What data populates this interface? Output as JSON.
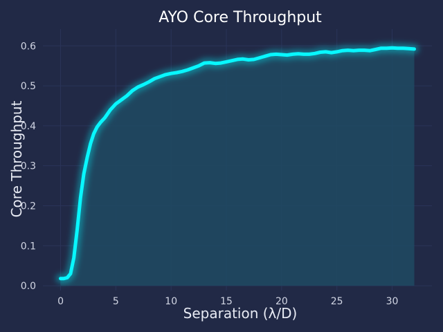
{
  "chart_data": {
    "type": "area",
    "title": "AYO Core Throughput",
    "xlabel": "Separation (λ/D)",
    "ylabel": "Core Throughput",
    "xlim": [
      -1.6,
      33.6
    ],
    "ylim": [
      -0.012,
      0.642
    ],
    "xticks": [
      0,
      5,
      10,
      15,
      20,
      25,
      30
    ],
    "xtick_labels": [
      "0",
      "5",
      "10",
      "15",
      "20",
      "25",
      "30"
    ],
    "yticks": [
      0.0,
      0.1,
      0.2,
      0.3,
      0.4,
      0.5,
      0.6
    ],
    "ytick_labels": [
      "0.0",
      "0.1",
      "0.2",
      "0.3",
      "0.4",
      "0.5",
      "0.6"
    ],
    "grid": true,
    "colors": {
      "background": "#212946",
      "grid": "#2a3459",
      "line": "#08f7fe",
      "fill": "#1f4a63"
    },
    "series": [
      {
        "x": [
          0,
          0.3,
          0.6,
          0.9,
          1.2,
          1.5,
          1.8,
          2.1,
          2.4,
          2.7,
          3.0,
          3.3,
          3.6,
          4.0,
          4.5,
          5.0,
          5.5,
          6.0,
          6.5,
          7.0,
          7.5,
          8.0,
          8.5,
          9.0,
          9.5,
          10.0,
          10.5,
          11.0,
          11.5,
          12.0,
          12.5,
          13.0,
          13.5,
          14.0,
          14.5,
          15.0,
          15.5,
          16.0,
          16.5,
          17.0,
          17.5,
          18.0,
          18.5,
          19.0,
          19.5,
          20.0,
          20.5,
          21.0,
          21.5,
          22.0,
          22.5,
          23.0,
          23.5,
          24.0,
          24.5,
          25.0,
          25.5,
          26.0,
          26.5,
          27.0,
          27.5,
          28.0,
          28.5,
          29.0,
          29.5,
          30.0,
          30.5,
          31.0,
          31.5,
          32.0
        ],
        "y": [
          0.018,
          0.018,
          0.02,
          0.03,
          0.07,
          0.14,
          0.22,
          0.28,
          0.32,
          0.355,
          0.38,
          0.397,
          0.408,
          0.42,
          0.44,
          0.455,
          0.465,
          0.475,
          0.488,
          0.497,
          0.503,
          0.51,
          0.518,
          0.523,
          0.528,
          0.531,
          0.533,
          0.536,
          0.54,
          0.545,
          0.55,
          0.557,
          0.558,
          0.556,
          0.557,
          0.56,
          0.563,
          0.566,
          0.567,
          0.565,
          0.566,
          0.57,
          0.574,
          0.578,
          0.579,
          0.578,
          0.577,
          0.579,
          0.58,
          0.579,
          0.579,
          0.581,
          0.584,
          0.585,
          0.583,
          0.585,
          0.588,
          0.589,
          0.588,
          0.589,
          0.589,
          0.588,
          0.591,
          0.594,
          0.594,
          0.595,
          0.594,
          0.594,
          0.593,
          0.592
        ]
      }
    ]
  }
}
